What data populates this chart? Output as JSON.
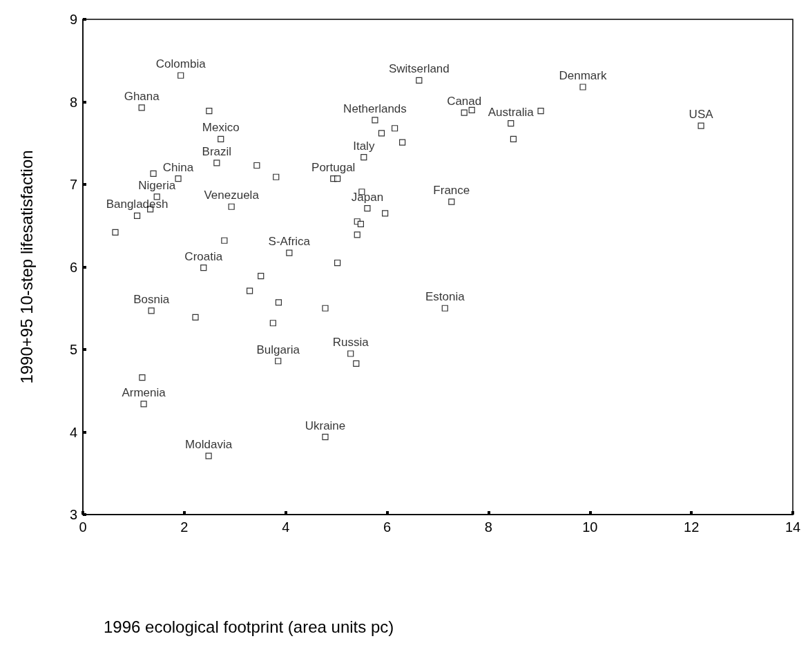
{
  "chart_data": {
    "type": "scatter",
    "xlabel": "1996 ecological footprint (area units pc)",
    "ylabel": "1990+95 10-step lifesatisfaction",
    "x": [
      1.93,
      1.16,
      2.49,
      2.72,
      2.64,
      1.88,
      1.39,
      1.46,
      1.33,
      1.07,
      0.64,
      2.93,
      2.79,
      3.43,
      3.81,
      2.38,
      4.07,
      3.51,
      3.29,
      1.35,
      2.22,
      3.86,
      3.75,
      3.85,
      4.78,
      5.28,
      5.39,
      5.02,
      1.17,
      1.2,
      4.78,
      2.48,
      4.94,
      5.02,
      5.54,
      5.76,
      5.89,
      6.15,
      6.3,
      6.63,
      5.5,
      5.61,
      5.96,
      5.41,
      5.48,
      5.41,
      7.27,
      7.14,
      7.52,
      7.67,
      8.44,
      8.49,
      9.03,
      9.86,
      12.19
    ],
    "values": [
      8.32,
      7.93,
      7.89,
      7.55,
      7.26,
      7.07,
      7.13,
      6.85,
      6.7,
      6.62,
      6.42,
      6.73,
      6.32,
      7.23,
      7.09,
      5.99,
      6.17,
      5.89,
      5.71,
      5.47,
      5.39,
      5.57,
      5.32,
      4.86,
      5.5,
      4.95,
      4.83,
      6.05,
      4.66,
      4.34,
      3.94,
      3.71,
      7.07,
      7.07,
      7.33,
      7.78,
      7.62,
      7.68,
      7.51,
      8.26,
      6.91,
      6.71,
      6.65,
      6.55,
      6.52,
      6.39,
      6.79,
      5.5,
      7.87,
      7.9,
      7.74,
      7.55,
      7.89,
      8.18,
      7.71
    ],
    "color": "#000000",
    "marker": "square",
    "grid": false,
    "xlim": [
      0,
      14
    ],
    "xticks": [
      0,
      2,
      4,
      6,
      8,
      10,
      12,
      14
    ],
    "ylim": [
      3,
      9
    ],
    "yticks": [
      3,
      4,
      5,
      6,
      7,
      8,
      9
    ],
    "annotations": [
      {
        "text": "Colombia",
        "x": 1.93,
        "y": 8.32
      },
      {
        "text": "Ghana",
        "x": 1.16,
        "y": 7.93
      },
      {
        "text": "Mexico",
        "x": 2.72,
        "y": 7.55
      },
      {
        "text": "Brazil",
        "x": 2.64,
        "y": 7.26
      },
      {
        "text": "China",
        "x": 1.88,
        "y": 7.07
      },
      {
        "text": "Nigeria",
        "x": 1.46,
        "y": 6.85
      },
      {
        "text": "Bangladesh",
        "x": 1.07,
        "y": 6.62
      },
      {
        "text": "Venezuela",
        "x": 2.93,
        "y": 6.73
      },
      {
        "text": "Croatia",
        "x": 2.38,
        "y": 5.99
      },
      {
        "text": "S-Africa",
        "x": 4.07,
        "y": 6.17
      },
      {
        "text": "Bosnia",
        "x": 1.35,
        "y": 5.47
      },
      {
        "text": "Bulgaria",
        "x": 3.85,
        "y": 4.86
      },
      {
        "text": "Russia",
        "x": 5.28,
        "y": 4.95
      },
      {
        "text": "Armenia",
        "x": 1.2,
        "y": 4.34
      },
      {
        "text": "Ukraine",
        "x": 4.78,
        "y": 3.94
      },
      {
        "text": "Moldavia",
        "x": 2.48,
        "y": 3.71
      },
      {
        "text": "Portugal",
        "x": 4.94,
        "y": 7.07
      },
      {
        "text": "Italy",
        "x": 5.54,
        "y": 7.33
      },
      {
        "text": "Netherlands",
        "x": 5.76,
        "y": 7.78
      },
      {
        "text": "Switserland",
        "x": 6.63,
        "y": 8.26
      },
      {
        "text": "Japan",
        "x": 5.61,
        "y": 6.71
      },
      {
        "text": "France",
        "x": 7.27,
        "y": 6.79
      },
      {
        "text": "Estonia",
        "x": 7.14,
        "y": 5.5
      },
      {
        "text": "Canad",
        "x": 7.52,
        "y": 7.87
      },
      {
        "text": "Australia",
        "x": 8.44,
        "y": 7.74
      },
      {
        "text": "Denmark",
        "x": 9.86,
        "y": 8.18
      },
      {
        "text": "USA",
        "x": 12.19,
        "y": 7.71
      }
    ]
  }
}
